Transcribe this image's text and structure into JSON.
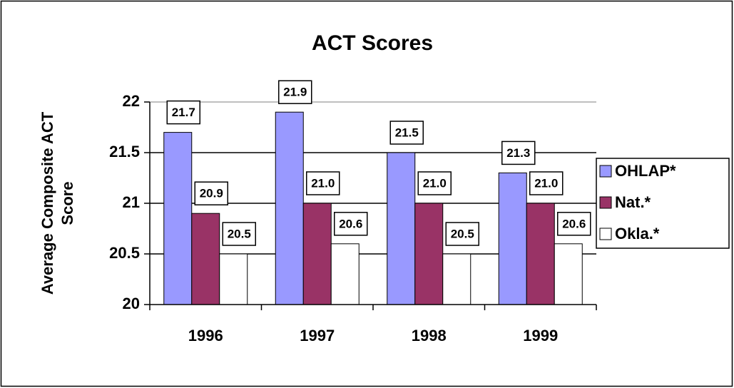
{
  "chart_data": {
    "type": "bar",
    "title": "ACT Scores",
    "y_label": [
      "Average Composite ACT",
      "Score"
    ],
    "categories": [
      "1996",
      "1997",
      "1998",
      "1999"
    ],
    "series": [
      {
        "name": "OHLAP*",
        "color": "#9999ff",
        "values": [
          21.7,
          21.9,
          21.5,
          21.3
        ],
        "value_labels": [
          "21.7",
          "21.9",
          "21.5",
          "21.3"
        ]
      },
      {
        "name": "Nat.*",
        "color": "#993366",
        "values": [
          20.9,
          21.0,
          21.0,
          21.0
        ],
        "value_labels": [
          "20.9",
          "21.0",
          "21.0",
          "21.0"
        ]
      },
      {
        "name": "Okla.*",
        "color": "#ffffff",
        "values": [
          20.5,
          20.6,
          20.5,
          20.6
        ],
        "value_labels": [
          "20.5",
          "20.6",
          "20.5",
          "20.6"
        ]
      }
    ],
    "ylim": [
      20,
      22
    ],
    "yticks": [
      20,
      20.5,
      21,
      21.5,
      22
    ],
    "grid": true,
    "legend": "right"
  }
}
